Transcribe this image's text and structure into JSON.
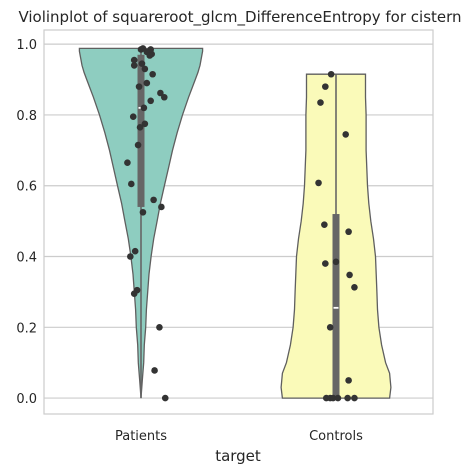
{
  "chart_data": {
    "type": "violin",
    "title": "Violinplot of squareroot_glcm_DifferenceEntropy for cistern",
    "xlabel": "target",
    "ylabel": "",
    "categories": [
      "Patients",
      "Controls"
    ],
    "ylim": [
      -0.045,
      1.04
    ],
    "yticks": [
      0.0,
      0.2,
      0.4,
      0.6,
      0.8,
      1.0
    ],
    "ytick_labels": [
      "0.0",
      "0.2",
      "0.4",
      "0.6",
      "0.8",
      "1.0"
    ],
    "grid": true,
    "legend": "none",
    "series": [
      {
        "category": "Patients",
        "color": "#8ecdc0",
        "density_profile": [
          [
            0.0,
            0.0
          ],
          [
            0.05,
            0.02
          ],
          [
            0.1,
            0.04
          ],
          [
            0.15,
            0.05
          ],
          [
            0.2,
            0.07
          ],
          [
            0.25,
            0.08
          ],
          [
            0.3,
            0.1
          ],
          [
            0.35,
            0.12
          ],
          [
            0.4,
            0.15
          ],
          [
            0.45,
            0.19
          ],
          [
            0.5,
            0.24
          ],
          [
            0.55,
            0.29
          ],
          [
            0.6,
            0.35
          ],
          [
            0.65,
            0.41
          ],
          [
            0.7,
            0.47
          ],
          [
            0.75,
            0.54
          ],
          [
            0.8,
            0.62
          ],
          [
            0.85,
            0.71
          ],
          [
            0.88,
            0.77
          ],
          [
            0.9,
            0.81
          ],
          [
            0.92,
            0.85
          ],
          [
            0.94,
            0.88
          ],
          [
            0.96,
            0.9
          ],
          [
            0.98,
            0.92
          ],
          [
            0.988,
            0.92
          ]
        ],
        "box": {
          "q1": 0.54,
          "median": 0.82,
          "q3": 0.97,
          "whisker_low": 0.0,
          "whisker_high": 0.988
        },
        "points": [
          [
            0.02,
            0.988
          ],
          [
            0.0,
            0.985
          ],
          [
            0.1,
            0.985
          ],
          [
            0.06,
            0.978
          ],
          [
            0.11,
            0.972
          ],
          [
            0.09,
            0.968
          ],
          [
            -0.07,
            0.955
          ],
          [
            0.01,
            0.945
          ],
          [
            -0.07,
            0.94
          ],
          [
            0.04,
            0.93
          ],
          [
            0.12,
            0.915
          ],
          [
            0.06,
            0.89
          ],
          [
            -0.02,
            0.88
          ],
          [
            0.2,
            0.862
          ],
          [
            0.24,
            0.85
          ],
          [
            0.1,
            0.84
          ],
          [
            0.03,
            0.82
          ],
          [
            -0.08,
            0.795
          ],
          [
            0.04,
            0.775
          ],
          [
            -0.01,
            0.765
          ],
          [
            -0.03,
            0.715
          ],
          [
            -0.14,
            0.665
          ],
          [
            -0.1,
            0.605
          ],
          [
            0.13,
            0.56
          ],
          [
            0.21,
            0.54
          ],
          [
            0.02,
            0.525
          ],
          [
            -0.06,
            0.415
          ],
          [
            -0.11,
            0.4
          ],
          [
            -0.04,
            0.305
          ],
          [
            -0.07,
            0.295
          ],
          [
            0.19,
            0.2
          ],
          [
            0.14,
            0.078
          ],
          [
            0.25,
            0.0
          ]
        ]
      },
      {
        "category": "Controls",
        "color": "#fafab9",
        "density_profile": [
          [
            0.0,
            0.8
          ],
          [
            0.03,
            0.82
          ],
          [
            0.07,
            0.8
          ],
          [
            0.1,
            0.74
          ],
          [
            0.15,
            0.68
          ],
          [
            0.2,
            0.64
          ],
          [
            0.25,
            0.62
          ],
          [
            0.3,
            0.61
          ],
          [
            0.35,
            0.6
          ],
          [
            0.4,
            0.59
          ],
          [
            0.45,
            0.56
          ],
          [
            0.5,
            0.52
          ],
          [
            0.55,
            0.49
          ],
          [
            0.6,
            0.47
          ],
          [
            0.65,
            0.46
          ],
          [
            0.7,
            0.45
          ],
          [
            0.75,
            0.45
          ],
          [
            0.8,
            0.45
          ],
          [
            0.85,
            0.44
          ],
          [
            0.9,
            0.44
          ],
          [
            0.915,
            0.44
          ]
        ],
        "box": {
          "q1": 0.0,
          "median": 0.255,
          "q3": 0.52,
          "whisker_low": 0.0,
          "whisker_high": 0.915
        },
        "points": [
          [
            -0.05,
            0.915
          ],
          [
            -0.11,
            0.88
          ],
          [
            -0.16,
            0.835
          ],
          [
            0.1,
            0.745
          ],
          [
            -0.18,
            0.608
          ],
          [
            -0.12,
            0.49
          ],
          [
            0.13,
            0.47
          ],
          [
            0.0,
            0.385
          ],
          [
            -0.11,
            0.38
          ],
          [
            0.14,
            0.348
          ],
          [
            0.19,
            0.313
          ],
          [
            -0.06,
            0.2
          ],
          [
            0.13,
            0.05
          ],
          [
            -0.1,
            0.0
          ],
          [
            -0.06,
            0.0
          ],
          [
            -0.03,
            0.0
          ],
          [
            0.02,
            0.0
          ],
          [
            0.12,
            0.0
          ],
          [
            0.19,
            0.0
          ]
        ]
      }
    ]
  }
}
